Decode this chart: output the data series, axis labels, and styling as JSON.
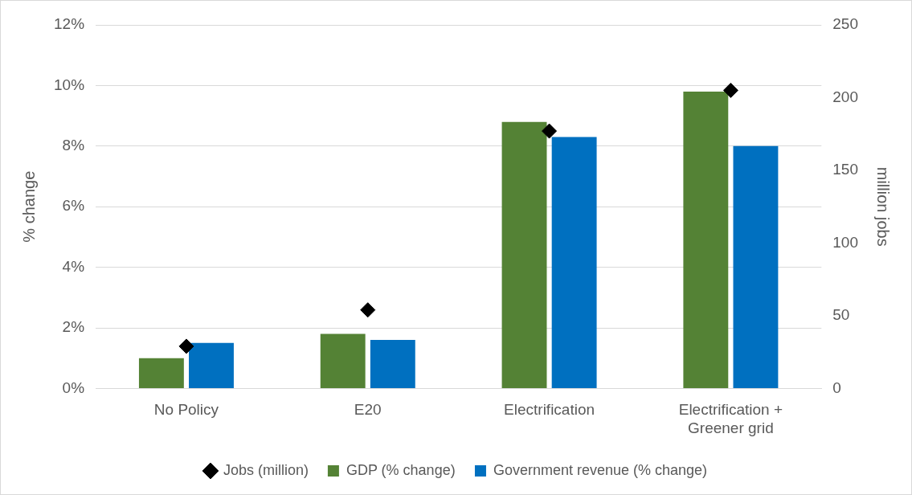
{
  "chart_data": {
    "type": "bar",
    "categories": [
      "No Policy",
      "E20",
      "Electrification",
      "Electrification + Greener grid"
    ],
    "series": [
      {
        "name": "GDP (% change)",
        "color": "#548235",
        "values": [
          1.0,
          1.8,
          8.8,
          9.8
        ]
      },
      {
        "name": "Government revenue (% change)",
        "color": "#0070c0",
        "values": [
          1.5,
          1.6,
          8.3,
          8.0
        ]
      },
      {
        "name": "Jobs (million)",
        "type": "scatter",
        "axis": "y2",
        "color": "#000000",
        "marker": "diamond",
        "values": [
          29,
          54,
          177,
          205
        ]
      }
    ],
    "ylabel": "% change",
    "y2label": "million jobs",
    "ylim": [
      0,
      12
    ],
    "yticks": [
      {
        "value": 0,
        "label": "0%"
      },
      {
        "value": 2,
        "label": "2%"
      },
      {
        "value": 4,
        "label": "4%"
      },
      {
        "value": 6,
        "label": "6%"
      },
      {
        "value": 8,
        "label": "8%"
      },
      {
        "value": 10,
        "label": "10%"
      },
      {
        "value": 12,
        "label": "12%"
      }
    ],
    "y2lim": [
      0,
      250
    ],
    "y2ticks": [
      0,
      50,
      100,
      150,
      200,
      250
    ],
    "grid": "y",
    "legend": "bottom"
  }
}
